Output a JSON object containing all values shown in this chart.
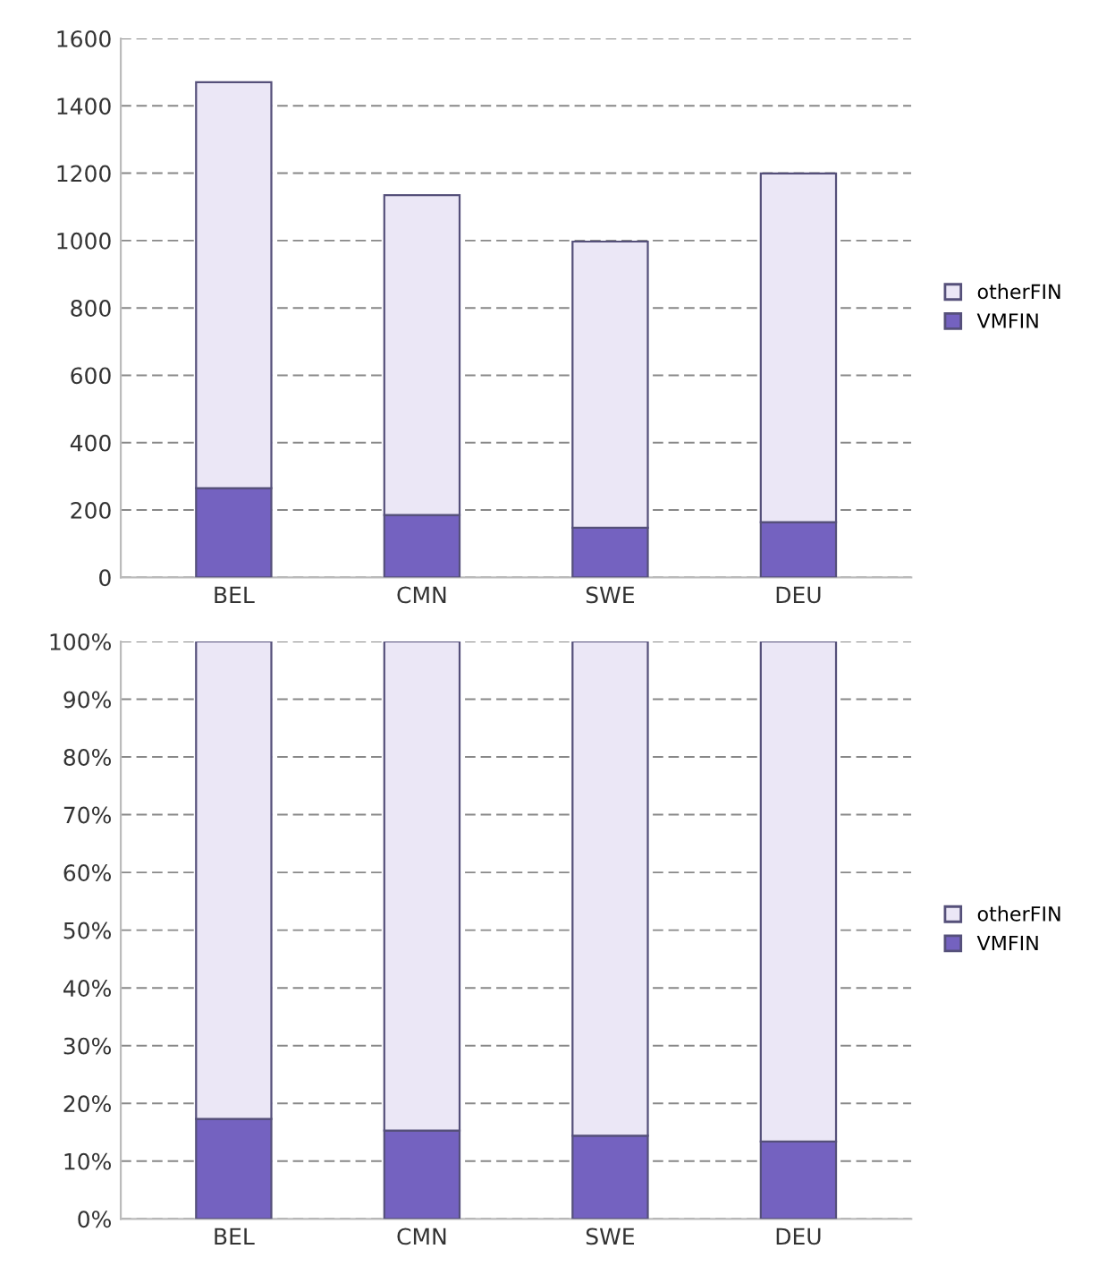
{
  "chart_data": [
    {
      "type": "bar",
      "stacked": true,
      "categories": [
        "BEL",
        "CMN",
        "SWE",
        "DEU"
      ],
      "series": [
        {
          "name": "VMFIN",
          "color": "#7462c0",
          "values": [
            265,
            185,
            147,
            164
          ]
        },
        {
          "name": "otherFIN",
          "color": "#ebe7f6",
          "values": [
            1205,
            950,
            850,
            1035
          ]
        }
      ],
      "ylim": [
        0,
        1600
      ],
      "yticks": [
        0,
        200,
        400,
        600,
        800,
        1000,
        1200,
        1400,
        1600
      ],
      "grid": "y",
      "legend": "right"
    },
    {
      "type": "bar",
      "stacked": true,
      "categories": [
        "BEL",
        "CMN",
        "SWE",
        "DEU"
      ],
      "series": [
        {
          "name": "VMFIN",
          "color": "#7462c0",
          "values": [
            17.3,
            15.3,
            14.4,
            13.4
          ]
        },
        {
          "name": "otherFIN",
          "color": "#ebe7f6",
          "values": [
            82.7,
            84.7,
            85.6,
            86.6
          ]
        }
      ],
      "ylim": [
        0,
        100
      ],
      "yticks": [
        {
          "value": 0,
          "label": "0%"
        },
        {
          "value": 10,
          "label": "10%"
        },
        {
          "value": 20,
          "label": "20%"
        },
        {
          "value": 30,
          "label": "30%"
        },
        {
          "value": 40,
          "label": "40%"
        },
        {
          "value": 50,
          "label": "50%"
        },
        {
          "value": 60,
          "label": "60%"
        },
        {
          "value": 70,
          "label": "70%"
        },
        {
          "value": 80,
          "label": "80%"
        },
        {
          "value": 90,
          "label": "90%"
        },
        {
          "value": 100,
          "label": "100%"
        }
      ],
      "grid": "y",
      "legend": "right"
    }
  ]
}
